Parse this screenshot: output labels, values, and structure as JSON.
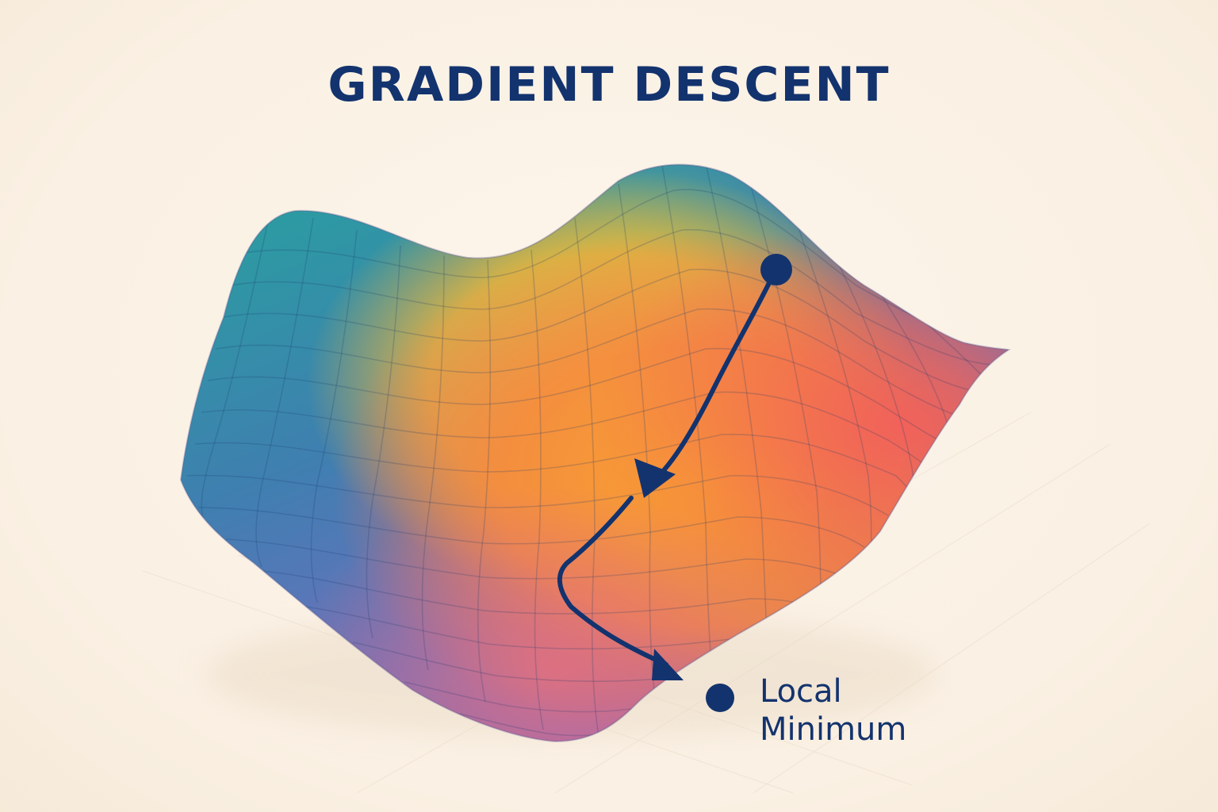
{
  "title": "GRADIENT DESCENT",
  "label": {
    "line1": "Local",
    "line2": "Minimum"
  },
  "colors": {
    "ink": "#13336e",
    "background": "#fbf2e6",
    "surface_teal": "#2aa5a0",
    "surface_blue": "#4c6fb5",
    "surface_purple": "#8b68be",
    "surface_yellow": "#e8c23c",
    "surface_orange": "#f6a233",
    "surface_red": "#f0685a"
  },
  "icons": {
    "start_point": "dark-blue-dot",
    "minimum_point": "dark-blue-dot",
    "path_arrows": "arrowheads"
  }
}
